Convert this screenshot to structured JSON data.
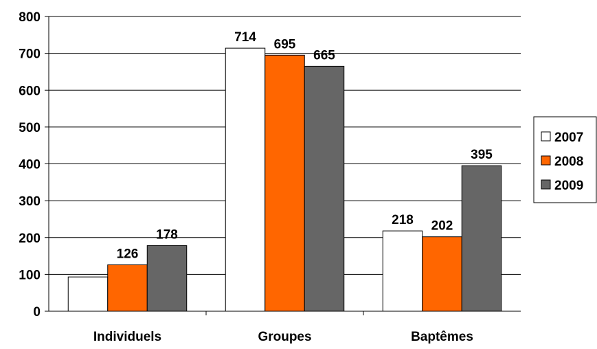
{
  "chart_data": {
    "type": "bar",
    "categories": [
      "Individuels",
      "Groupes",
      "Baptêmes"
    ],
    "series": [
      {
        "name": "2007",
        "values": [
          93,
          714,
          218
        ],
        "labels": [
          "",
          "714",
          "218"
        ],
        "color": "#ffffff"
      },
      {
        "name": "2008",
        "values": [
          126,
          695,
          202
        ],
        "labels": [
          "126",
          "695",
          "202"
        ],
        "color": "#ff6600"
      },
      {
        "name": "2009",
        "values": [
          178,
          665,
          395
        ],
        "labels": [
          "178",
          "665",
          "395"
        ],
        "color": "#666666"
      }
    ],
    "yticks": [
      "0",
      "100",
      "200",
      "300",
      "400",
      "500",
      "600",
      "700",
      "800"
    ],
    "ylim": [
      0,
      800
    ],
    "grid": true,
    "legend_position": "right"
  }
}
